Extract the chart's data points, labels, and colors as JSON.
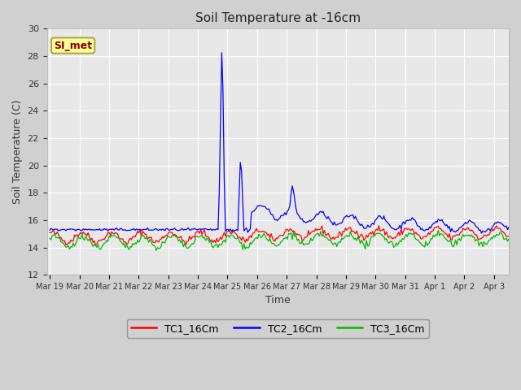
{
  "title": "Soil Temperature at -16cm",
  "xlabel": "Time",
  "ylabel": "Soil Temperature (C)",
  "ylim": [
    12,
    30
  ],
  "yticks": [
    12,
    14,
    16,
    18,
    20,
    22,
    24,
    26,
    28,
    30
  ],
  "plot_bg_color": "#e8e8e8",
  "fig_bg_color": "#d0d0d0",
  "annotation_text": "SI_met",
  "annotation_color": "#8b0000",
  "annotation_bg": "#ffff99",
  "annotation_border": "#aaaa44",
  "legend_entries": [
    "TC1_16Cm",
    "TC2_16Cm",
    "TC3_16Cm"
  ],
  "legend_colors": [
    "#ff0000",
    "#0000ff",
    "#00bb00"
  ],
  "tc1_color": "#ff0000",
  "tc2_color": "#0000ff",
  "tc3_color": "#00bb00",
  "grid_color": "#ffffff",
  "tick_label_color": "#333333"
}
